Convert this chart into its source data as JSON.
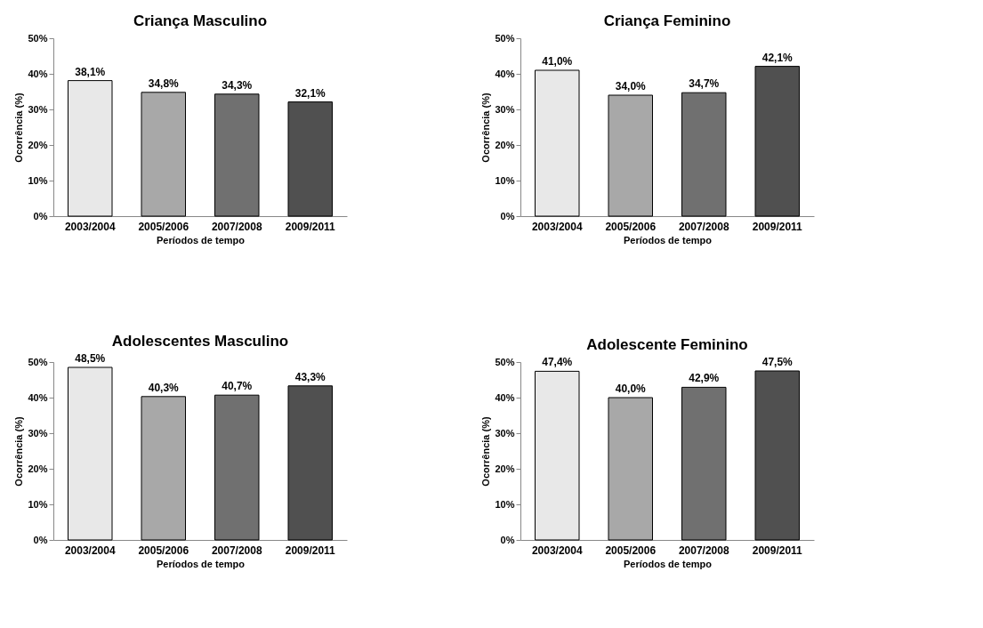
{
  "chart_data": [
    {
      "type": "bar",
      "title": "Criança Masculino",
      "xlabel": "Períodos de tempo",
      "ylabel": "Ocorrência (%)",
      "categories": [
        "2003/2004",
        "2005/2006",
        "2007/2008",
        "2009/2011"
      ],
      "values": [
        38.1,
        34.8,
        34.3,
        32.1
      ],
      "value_labels": [
        "38,1%",
        "34,8%",
        "34,3%",
        "32,1%"
      ],
      "colors": [
        "#e8e8e8",
        "#a8a8a8",
        "#707070",
        "#505050"
      ],
      "ylim": [
        0,
        50
      ],
      "yticks": [
        {
          "value": 0,
          "label": "0%"
        },
        {
          "value": 10,
          "label": "10%"
        },
        {
          "value": 20,
          "label": "20%"
        },
        {
          "value": 30,
          "label": "30%"
        },
        {
          "value": 40,
          "label": "40%"
        },
        {
          "value": 50,
          "label": "50%"
        }
      ],
      "grid": false,
      "legend": false
    },
    {
      "type": "bar",
      "title": "Criança Feminino",
      "xlabel": "Períodos de tempo",
      "ylabel": "Ocorrência (%)",
      "categories": [
        "2003/2004",
        "2005/2006",
        "2007/2008",
        "2009/2011"
      ],
      "values": [
        41.0,
        34.0,
        34.7,
        42.1
      ],
      "value_labels": [
        "41,0%",
        "34,0%",
        "34,7%",
        "42,1%"
      ],
      "colors": [
        "#e8e8e8",
        "#a8a8a8",
        "#707070",
        "#505050"
      ],
      "ylim": [
        0,
        50
      ],
      "yticks": [
        {
          "value": 0,
          "label": "0%"
        },
        {
          "value": 10,
          "label": "10%"
        },
        {
          "value": 20,
          "label": "20%"
        },
        {
          "value": 30,
          "label": "30%"
        },
        {
          "value": 40,
          "label": "40%"
        },
        {
          "value": 50,
          "label": "50%"
        }
      ],
      "grid": false,
      "legend": false
    },
    {
      "type": "bar",
      "title": "Adolescentes Masculino",
      "xlabel": "Períodos de tempo",
      "ylabel": "Ocorrência (%)",
      "categories": [
        "2003/2004",
        "2005/2006",
        "2007/2008",
        "2009/2011"
      ],
      "values": [
        48.5,
        40.3,
        40.7,
        43.3
      ],
      "value_labels": [
        "48,5%",
        "40,3%",
        "40,7%",
        "43,3%"
      ],
      "colors": [
        "#e8e8e8",
        "#a8a8a8",
        "#707070",
        "#505050"
      ],
      "ylim": [
        0,
        50
      ],
      "yticks": [
        {
          "value": 0,
          "label": "0%"
        },
        {
          "value": 10,
          "label": "10%"
        },
        {
          "value": 20,
          "label": "20%"
        },
        {
          "value": 30,
          "label": "30%"
        },
        {
          "value": 40,
          "label": "40%"
        },
        {
          "value": 50,
          "label": "50%"
        }
      ],
      "grid": false,
      "legend": false
    },
    {
      "type": "bar",
      "title": "Adolescente Feminino",
      "xlabel": "Períodos de tempo",
      "ylabel": "Ocorrência (%)",
      "categories": [
        "2003/2004",
        "2005/2006",
        "2007/2008",
        "2009/2011"
      ],
      "values": [
        47.4,
        40.0,
        42.9,
        47.5
      ],
      "value_labels": [
        "47,4%",
        "40,0%",
        "42,9%",
        "47,5%"
      ],
      "colors": [
        "#e8e8e8",
        "#a8a8a8",
        "#707070",
        "#505050"
      ],
      "ylim": [
        0,
        50
      ],
      "yticks": [
        {
          "value": 0,
          "label": "0%"
        },
        {
          "value": 10,
          "label": "10%"
        },
        {
          "value": 20,
          "label": "20%"
        },
        {
          "value": 30,
          "label": "30%"
        },
        {
          "value": 40,
          "label": "40%"
        },
        {
          "value": 50,
          "label": "50%"
        }
      ],
      "grid": false,
      "legend": false
    }
  ]
}
